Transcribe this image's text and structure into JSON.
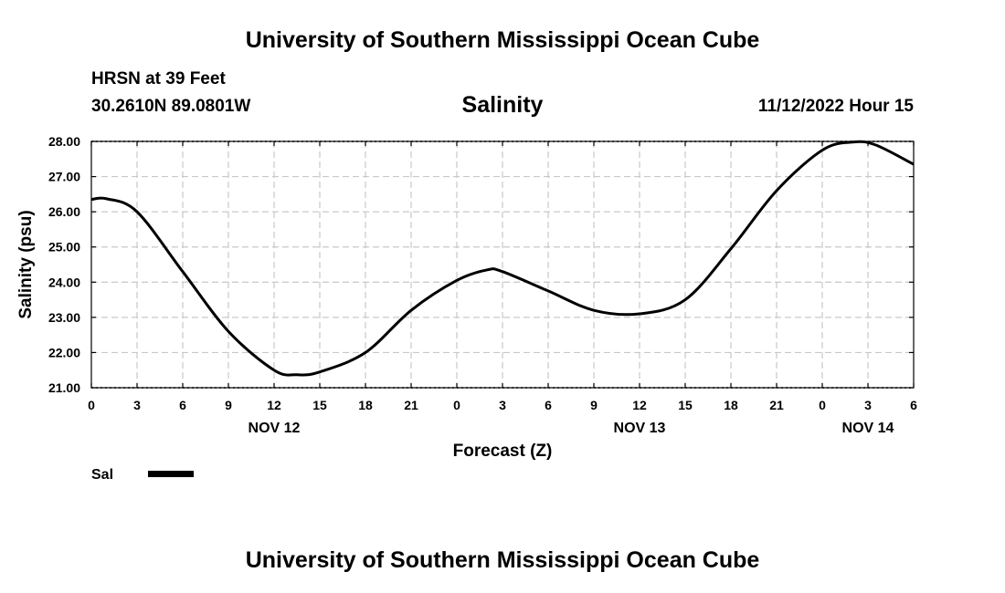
{
  "header": {
    "title": "University of Southern Mississippi Ocean Cube",
    "station": "HRSN at 39 Feet",
    "coords": "30.2610N  89.0801W",
    "datetime": "11/12/2022 Hour 15"
  },
  "footer": {
    "title": "University of Southern Mississippi Ocean Cube"
  },
  "legend": {
    "label": "Sal",
    "placement": "bottom-left"
  },
  "colors": {
    "line": "#000000",
    "grid": "#c8c8c8"
  },
  "chart_data": {
    "type": "line",
    "title": "Salinity",
    "xlabel": "Forecast (Z)",
    "ylabel": "Salinity (psu)",
    "x_range_hours": [
      0,
      54
    ],
    "ylim": [
      21,
      28
    ],
    "grid": true,
    "x_tick_labels": [
      "0",
      "3",
      "6",
      "9",
      "12",
      "15",
      "18",
      "21",
      "0",
      "3",
      "6",
      "9",
      "12",
      "15",
      "18",
      "21",
      "0",
      "3",
      "6"
    ],
    "y_tick_labels": [
      "28.00",
      "27.00",
      "26.00",
      "25.00",
      "24.00",
      "23.00",
      "22.00",
      "21.00"
    ],
    "date_labels": [
      {
        "label": "NOV 12",
        "hour": 12
      },
      {
        "label": "NOV 13",
        "hour": 36
      },
      {
        "label": "NOV 14",
        "hour": 51
      }
    ],
    "series": [
      {
        "name": "Sal",
        "x": [
          0,
          1,
          3,
          6,
          9,
          12,
          13.5,
          15,
          18,
          21,
          24,
          26,
          27,
          30,
          33,
          36,
          39,
          42,
          45,
          48,
          50,
          51.5,
          54
        ],
        "y": [
          26.35,
          26.37,
          26.0,
          24.3,
          22.6,
          21.5,
          21.37,
          21.45,
          22.0,
          23.2,
          24.05,
          24.35,
          24.3,
          23.75,
          23.2,
          23.1,
          23.5,
          24.95,
          26.6,
          27.75,
          27.98,
          27.9,
          27.35
        ]
      }
    ]
  }
}
